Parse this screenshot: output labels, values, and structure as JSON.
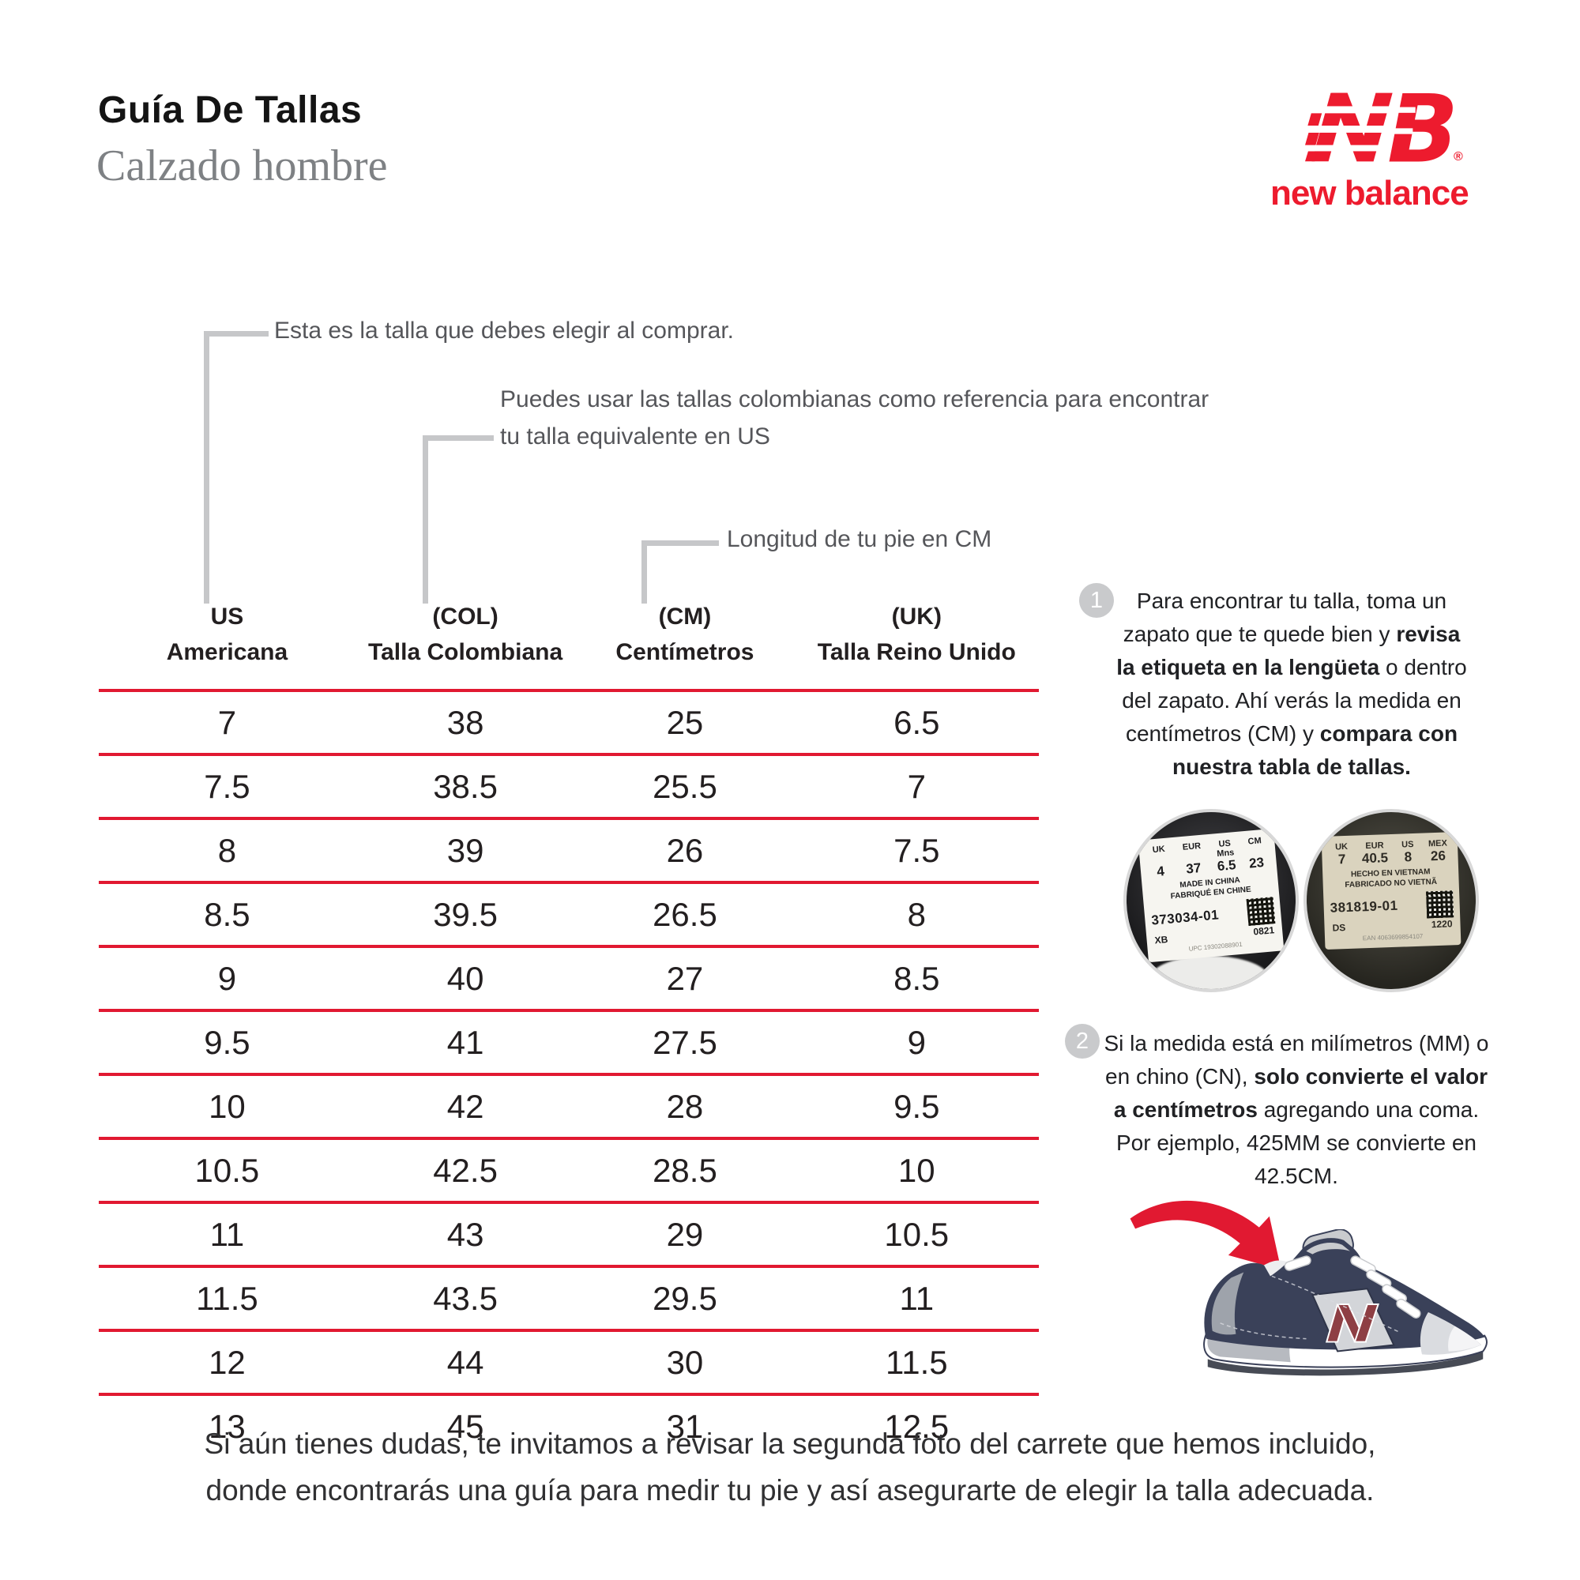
{
  "header": {
    "title": "Guía De Tallas",
    "subtitle": "Calzado hombre",
    "brand_wordmark": "new balance",
    "registered_mark": "®"
  },
  "colors": {
    "brand_red": "#ED1B2E",
    "table_line_red": "#E11931",
    "annotation_gray": "#55565A",
    "bracket_gray": "#C6C7C9",
    "subtitle_gray": "#7E8184"
  },
  "annotations": {
    "us": "Esta es la talla que debes elegir al comprar.",
    "col_line1": "Puedes usar las tallas colombianas como referencia para encontrar",
    "col_line2": "tu talla equivalente en US",
    "cm": "Longitud de tu pie en CM"
  },
  "table": {
    "headers": [
      {
        "line1": "US",
        "line2": "Americana"
      },
      {
        "line1": "(COL)",
        "line2": "Talla Colombiana"
      },
      {
        "line1": "(CM)",
        "line2": "Centímetros"
      },
      {
        "line1": "(UK)",
        "line2": "Talla Reino Unido"
      }
    ],
    "rows": [
      [
        "7",
        "38",
        "25",
        "6.5"
      ],
      [
        "7.5",
        "38.5",
        "25.5",
        "7"
      ],
      [
        "8",
        "39",
        "26",
        "7.5"
      ],
      [
        "8.5",
        "39.5",
        "26.5",
        "8"
      ],
      [
        "9",
        "40",
        "27",
        "8.5"
      ],
      [
        "9.5",
        "41",
        "27.5",
        "9"
      ],
      [
        "10",
        "42",
        "28",
        "9.5"
      ],
      [
        "10.5",
        "42.5",
        "28.5",
        "10"
      ],
      [
        "11",
        "43",
        "29",
        "10.5"
      ],
      [
        "11.5",
        "43.5",
        "29.5",
        "11"
      ],
      [
        "12",
        "44",
        "30",
        "11.5"
      ],
      [
        "13",
        "45",
        "31",
        "12.5"
      ]
    ]
  },
  "steps": [
    {
      "number": "1",
      "html": "Para encontrar tu talla, toma un zapato que te quede bien y <b>revisa la etiqueta en la lengüeta</b> o dentro del zapato. Ahí verás la medida en centímetros (CM) y <b>compara con nuestra tabla de tallas.</b>"
    },
    {
      "number": "2",
      "html": "Si la medida está en milímetros (MM) o en chino (CN), <b>solo convierte el valor a centímetros</b> agregando una coma. Por ejemplo, 425MM se convierte en 42.5CM."
    }
  ],
  "tags": [
    {
      "cols": [
        {
          "h": "UK",
          "v": "4"
        },
        {
          "h": "EUR",
          "v": "37"
        },
        {
          "h": "US Mns",
          "v": "6.5"
        },
        {
          "h": "CM",
          "v": "23"
        }
      ],
      "origin_line1": "MADE IN CHINA",
      "origin_line2": "FABRIQUÉ EN CHINE",
      "style_code": "373034-01",
      "factory": "XB",
      "date_code": "0821",
      "fine_print": "UPC 19302088901"
    },
    {
      "cols": [
        {
          "h": "UK",
          "v": "7"
        },
        {
          "h": "EUR",
          "v": "40.5"
        },
        {
          "h": "US",
          "v": "8"
        },
        {
          "h": "MEX",
          "v": "26"
        }
      ],
      "origin_line1": "HECHO EN VIETNAM",
      "origin_line2": "FABRICADO NO VIETNÃ",
      "style_code": "381819-01",
      "factory": "DS",
      "date_code": "1220",
      "fine_print": "EAN 4063699854107"
    }
  ],
  "footer": {
    "line1": "Si aún tienes dudas, te invitamos a revisar la segunda foto del carrete que hemos incluido,",
    "line2": "donde encontrarás una guía para medir tu pie y así asegurarte de elegir la talla adecuada."
  }
}
